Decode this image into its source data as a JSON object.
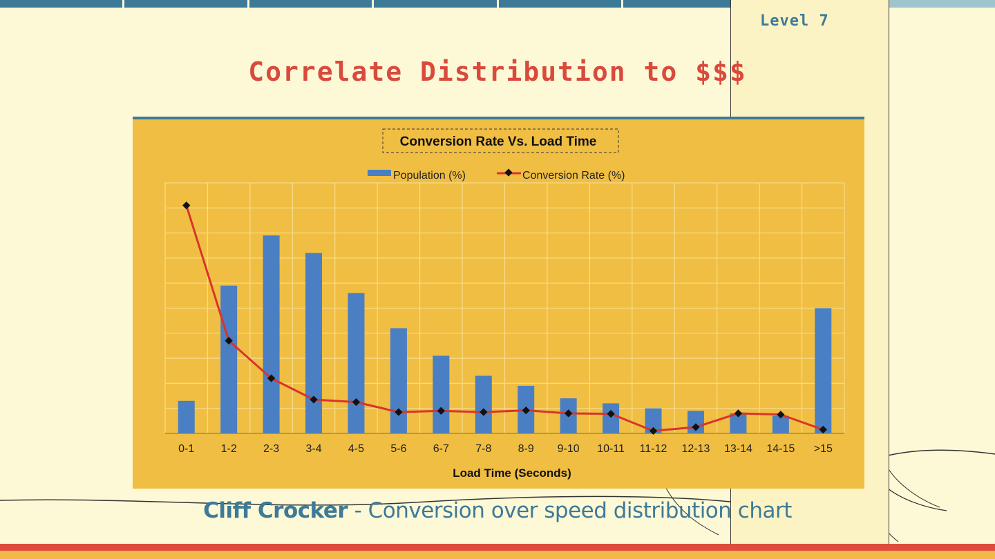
{
  "progress": {
    "completed_segments": 7,
    "total_segments": 8
  },
  "level_label": "Level 7",
  "slide_title": "Correlate Distribution to $$$",
  "caption": {
    "author": "Cliff Crocker",
    "rest": " - Conversion over speed distribution chart"
  },
  "colors": {
    "accent": "#3d7a98",
    "title_red": "#d94a3d",
    "chart_bg": "#f0be42",
    "bar": "#4a7fc3",
    "line": "#d9342b"
  },
  "chart_data": {
    "type": "bar",
    "title": "Conversion Rate Vs. Load Time",
    "xlabel": "Load Time (Seconds)",
    "ylabel": "",
    "legend": [
      "Population (%)",
      "Conversion Rate (%)"
    ],
    "legend_position": "top-center",
    "grid": true,
    "categories": [
      "0-1",
      "1-2",
      "2-3",
      "3-4",
      "4-5",
      "5-6",
      "6-7",
      "7-8",
      "8-9",
      "9-10",
      "10-11",
      "11-12",
      "12-13",
      "13-14",
      "14-15",
      ">15"
    ],
    "ylim": [
      0,
      10
    ],
    "series": [
      {
        "name": "Population (%)",
        "type": "bar",
        "values": [
          1.3,
          5.9,
          7.9,
          7.2,
          5.6,
          4.2,
          3.1,
          2.3,
          1.9,
          1.4,
          1.2,
          1.0,
          0.9,
          0.8,
          0.7,
          5.0
        ]
      },
      {
        "name": "Conversion Rate (%)",
        "type": "line",
        "values": [
          9.1,
          3.7,
          2.2,
          1.35,
          1.25,
          0.85,
          0.9,
          0.85,
          0.92,
          0.8,
          0.78,
          0.1,
          0.25,
          0.8,
          0.75,
          0.15
        ]
      }
    ]
  }
}
